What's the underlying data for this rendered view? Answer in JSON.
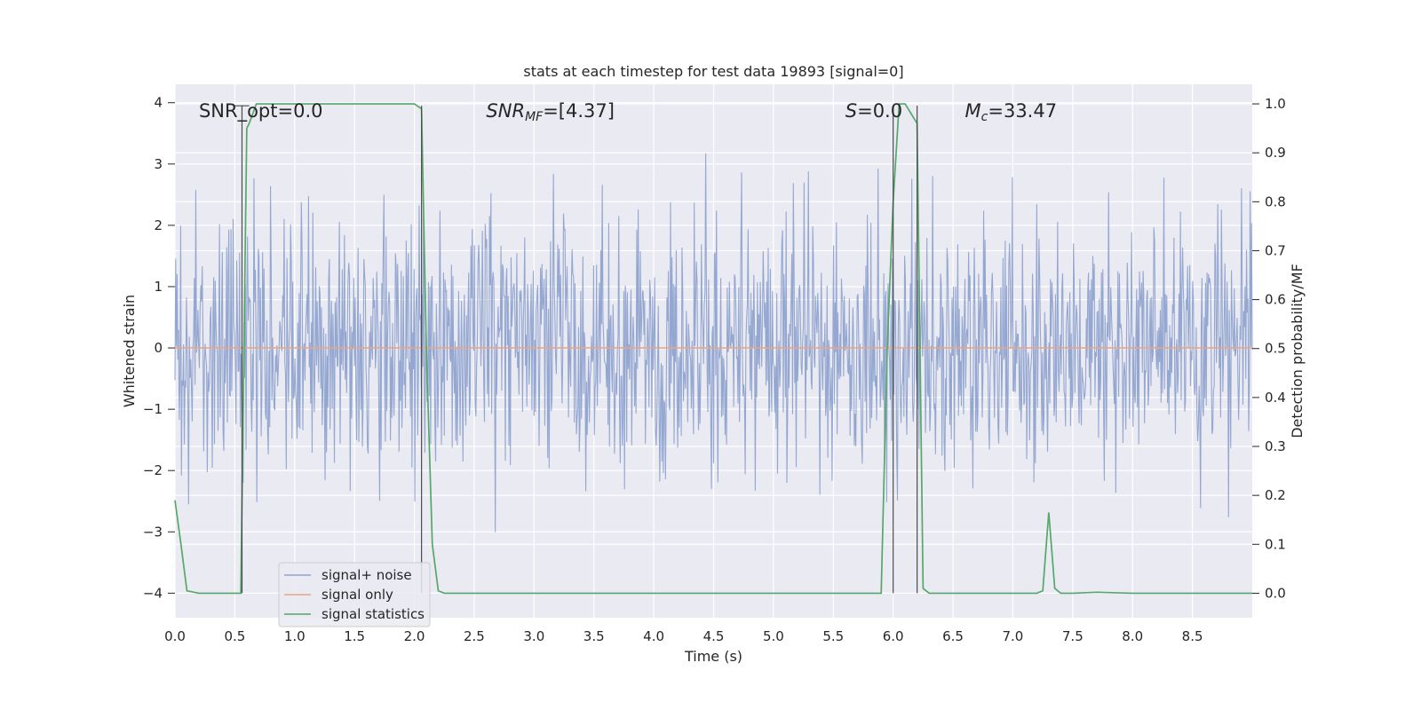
{
  "chart_data": {
    "type": "line",
    "title": "stats at each timestep for test data 19893 [signal=0]",
    "xlabel": "Time (s)",
    "ylabel_left": "Whitened strain",
    "ylabel_right": "Detection probability/MF",
    "xlim": [
      0,
      9.0
    ],
    "ylim_left": [
      -4.4,
      4.3
    ],
    "ylim_right": [
      -0.05,
      1.04
    ],
    "x_ticks": [
      "0.0",
      "0.5",
      "1.0",
      "1.5",
      "2.0",
      "2.5",
      "3.0",
      "3.5",
      "4.0",
      "4.5",
      "5.0",
      "5.5",
      "6.0",
      "6.5",
      "7.0",
      "7.5",
      "8.0",
      "8.5"
    ],
    "y_left_ticks": [
      "4",
      "3",
      "2",
      "1",
      "0",
      "−1",
      "−2",
      "−3",
      "−4"
    ],
    "y_right_ticks": [
      "1.0",
      "0.9",
      "0.8",
      "0.7",
      "0.6",
      "0.5",
      "0.4",
      "0.3",
      "0.2",
      "0.1",
      "0.0"
    ],
    "grid": true,
    "legend_position": "lower-left",
    "annotations": [
      {
        "text": "SNR_opt=0.0",
        "x": 0.2,
        "y": 3.85
      },
      {
        "text": "SNR_MF=[4.37]",
        "x": 2.6,
        "y": 3.85
      },
      {
        "text": "S=0.0",
        "x": 5.6,
        "y": 3.85
      },
      {
        "text": "M_c=33.47",
        "x": 6.6,
        "y": 3.85
      }
    ],
    "vertical_markers": [
      0.56,
      2.06,
      6.0,
      6.2
    ],
    "series": [
      {
        "name": "signal+ noise",
        "color": "#8fa3cf",
        "axis": "left",
        "description_range": [
          -3.9,
          3.5
        ],
        "typical_band": [
          -1.7,
          1.5
        ]
      },
      {
        "name": "signal only",
        "color": "#e6a68a",
        "axis": "left",
        "x": [
          0,
          9.0
        ],
        "y": [
          0,
          0
        ]
      },
      {
        "name": "signal statistics",
        "color": "#55a868",
        "axis": "right",
        "x": [
          0.0,
          0.05,
          0.1,
          0.2,
          0.3,
          0.4,
          0.5,
          0.55,
          0.6,
          0.62,
          0.68,
          0.75,
          1.0,
          1.5,
          1.9,
          2.0,
          2.06,
          2.1,
          2.15,
          2.2,
          2.25,
          2.5,
          3.0,
          4.0,
          5.0,
          5.9,
          5.95,
          6.0,
          6.05,
          6.1,
          6.15,
          6.2,
          6.25,
          6.3,
          6.5,
          7.0,
          7.2,
          7.25,
          7.3,
          7.35,
          7.4,
          7.5,
          7.7,
          8.0,
          8.5,
          9.0
        ],
        "y": [
          0.19,
          0.1,
          0.005,
          0.0,
          0.0,
          0.0,
          0.0,
          0.0,
          0.95,
          0.96,
          1.0,
          1.0,
          1.0,
          1.0,
          1.0,
          1.0,
          0.99,
          0.5,
          0.1,
          0.005,
          0.0,
          0.0,
          0.0,
          0.0,
          0.0,
          0.0,
          0.5,
          0.8,
          1.0,
          1.0,
          0.98,
          0.96,
          0.01,
          0.0,
          0.0,
          0.0,
          0.0,
          0.005,
          0.165,
          0.01,
          0.0,
          0.0,
          0.002,
          0.0,
          0.0,
          0.0
        ]
      }
    ]
  }
}
